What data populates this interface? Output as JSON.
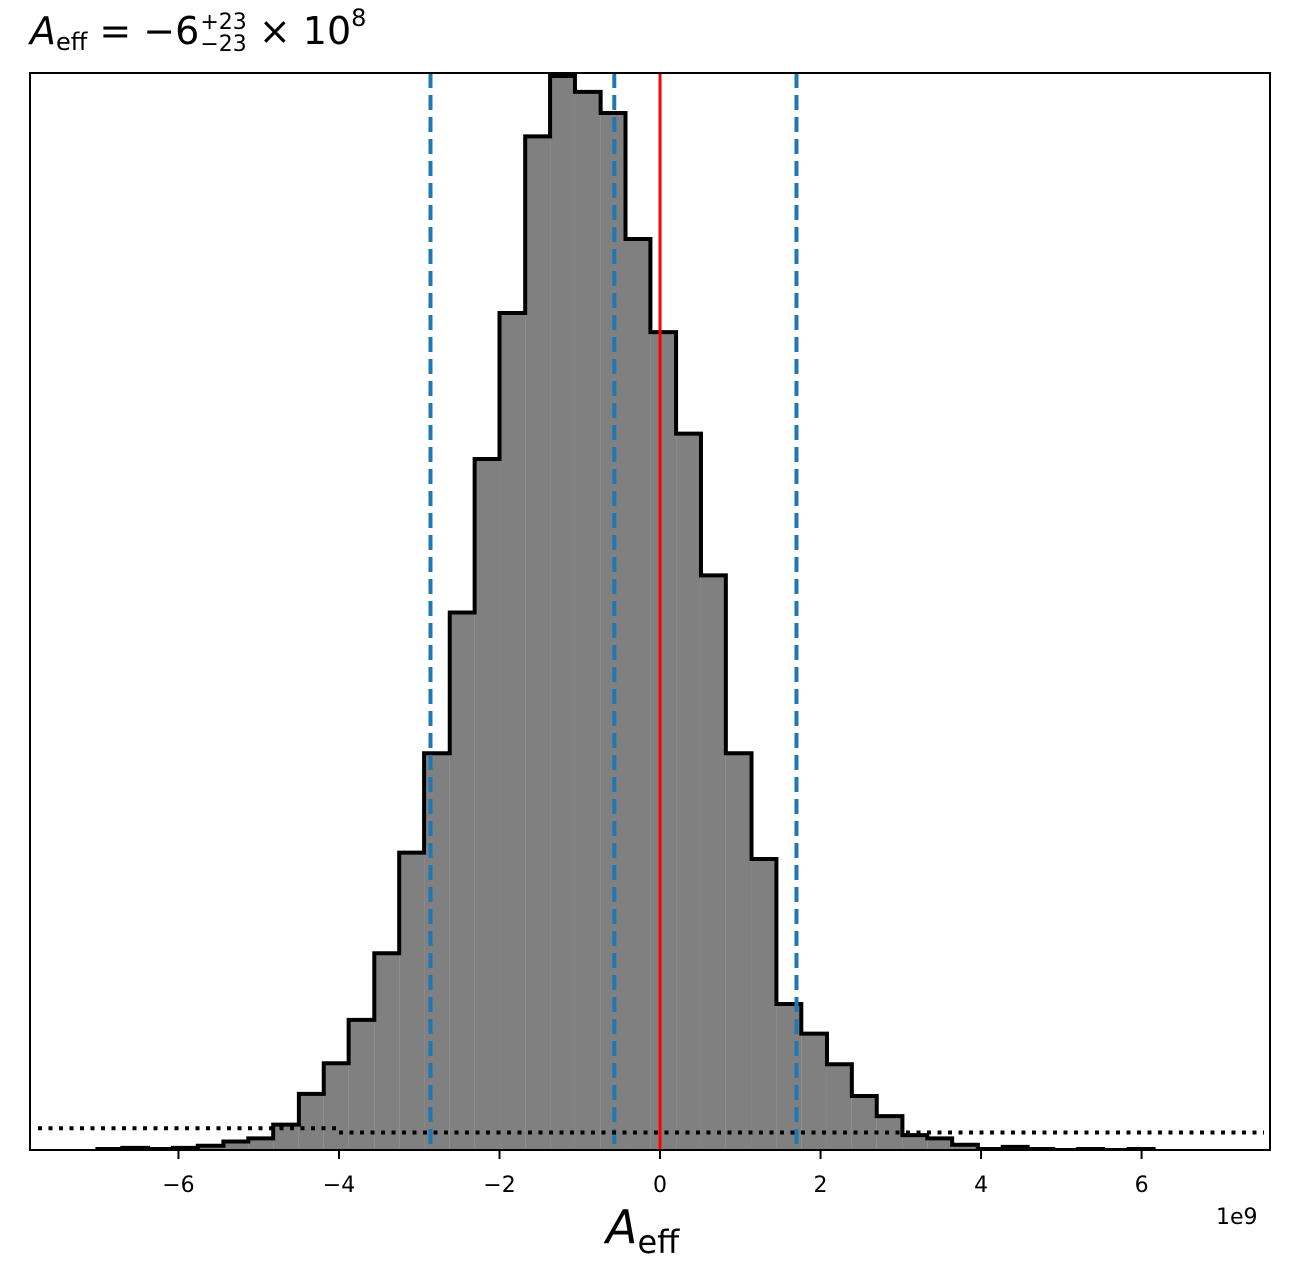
{
  "title": {
    "symbol": "A",
    "symbol_sub": "eff",
    "equals_value": " = −6",
    "upper_err": "+23",
    "lower_err": "−23",
    "times": " × 10",
    "exponent": "8"
  },
  "xlabel": {
    "symbol": "A",
    "symbol_sub": "eff"
  },
  "offset_text": "1e9",
  "chart_data": {
    "type": "histogram",
    "x_scale_factor": 1000000000,
    "xlim": [
      -7.85,
      7.6
    ],
    "ylim": [
      0,
      1.0
    ],
    "xticks": [
      -6,
      -4,
      -2,
      0,
      2,
      4,
      6
    ],
    "xtick_labels": [
      "−6",
      "−4",
      "−2",
      "0",
      "2",
      "4",
      "6"
    ],
    "yticks_visible": false,
    "bin_edges": [
      -7.01,
      -6.7,
      -6.38,
      -6.07,
      -5.76,
      -5.44,
      -5.13,
      -4.82,
      -4.5,
      -4.19,
      -3.88,
      -3.56,
      -3.25,
      -2.94,
      -2.62,
      -2.31,
      -2.0,
      -1.68,
      -1.37,
      -1.06,
      -0.74,
      -0.43,
      -0.12,
      0.2,
      0.51,
      0.82,
      1.14,
      1.45,
      1.76,
      2.08,
      2.39,
      2.7,
      3.02,
      3.33,
      3.64,
      3.96,
      4.27,
      4.58,
      4.9,
      5.21,
      5.52,
      5.84,
      6.15
    ],
    "bin_heights": [
      0.001,
      0.002,
      0.001,
      0.002,
      0.004,
      0.008,
      0.011,
      0.024,
      0.053,
      0.082,
      0.123,
      0.186,
      0.281,
      0.375,
      0.508,
      0.653,
      0.791,
      0.958,
      1.015,
      1.0,
      0.98,
      0.861,
      0.773,
      0.677,
      0.543,
      0.375,
      0.275,
      0.138,
      0.11,
      0.081,
      0.051,
      0.032,
      0.014,
      0.011,
      0.005,
      0.001,
      0.003,
      0.001,
      0.0,
      0.001,
      0.0,
      0.001
    ],
    "hist_fill": "#808080",
    "hist_edge": "#000000",
    "vlines": [
      {
        "x": -2.86,
        "style": "dashed",
        "color": "#1f77b4"
      },
      {
        "x": -0.57,
        "style": "dashed",
        "color": "#1f77b4"
      },
      {
        "x": 1.7,
        "style": "dashed",
        "color": "#1f77b4"
      },
      {
        "x": 0.0,
        "style": "solid",
        "color": "#ff0000"
      }
    ],
    "prior_line": {
      "style": "dotted",
      "color": "#000000",
      "segments": [
        {
          "x0": -7.85,
          "x1": -4.0,
          "y": 0.0205
        },
        {
          "x0": -4.0,
          "x1": 7.6,
          "y": 0.0165
        }
      ]
    }
  }
}
